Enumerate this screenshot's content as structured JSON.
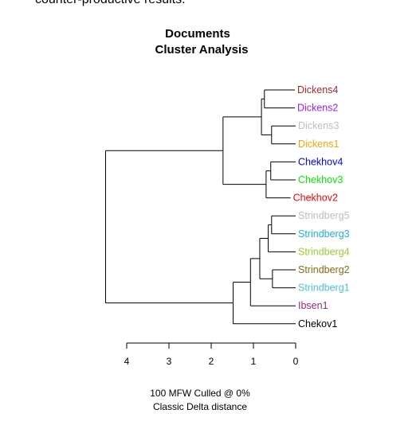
{
  "intro_text": "counter-productive results.",
  "chart_data": {
    "type": "dendrogram",
    "title_lines": [
      "Documents",
      "Cluster Analysis"
    ],
    "caption_lines": [
      "100 MFW  Culled @ 0%",
      "Classic Delta distance"
    ],
    "x_axis": {
      "reversed": true,
      "range": [
        4.0,
        0
      ],
      "ticks": [
        4,
        3,
        2,
        1,
        0
      ],
      "tick_labels": [
        "4",
        "3",
        "2",
        "1",
        "0"
      ]
    },
    "leaves": [
      {
        "label": "Dickens4",
        "color": "#a52a2a"
      },
      {
        "label": "Dickens2",
        "color": "#a020f0"
      },
      {
        "label": "Dickens3",
        "color": "#bebebe"
      },
      {
        "label": "Dickens1",
        "color": "#ffa500"
      },
      {
        "label": "Chekhov4",
        "color": "#0000ff"
      },
      {
        "label": "Chekhov3",
        "color": "#00ee00"
      },
      {
        "label": "Chekhov2",
        "color": "#ff0000"
      },
      {
        "label": "Strindberg5",
        "color": "#bebebe"
      },
      {
        "label": "Strindberg3",
        "color": "#1eb0e8"
      },
      {
        "label": "Strindberg4",
        "color": "#9acd32"
      },
      {
        "label": "Strindberg2",
        "color": "#8b6914"
      },
      {
        "label": "Strindberg1",
        "color": "#4fc1d9"
      },
      {
        "label": "Ibsen1",
        "color": "#9c2a78"
      },
      {
        "label": "Chekov1",
        "color": "#000000"
      }
    ],
    "leaf_heights": [
      0.02,
      0.02,
      0.0,
      0.0,
      0.0,
      0.0,
      0.12,
      0.0,
      0.0,
      0.0,
      0.0,
      0.0,
      0.0,
      0.0
    ],
    "merges": [
      {
        "members": [
          "Dickens4",
          "Dickens2"
        ],
        "height": 0.74
      },
      {
        "members": [
          "Dickens3",
          "Dickens1"
        ],
        "height": 0.57
      },
      {
        "members": [
          "Dickens4+Dickens2",
          "Dickens3+Dickens1"
        ],
        "height": 0.81
      },
      {
        "members": [
          "Chekhov4",
          "Chekhov3"
        ],
        "height": 0.59
      },
      {
        "members": [
          "Chekhov4+Chekhov3",
          "Chekhov2"
        ],
        "height": 0.7
      },
      {
        "members": [
          "Dickens group",
          "Chekhov group"
        ],
        "height": 1.72
      },
      {
        "members": [
          "Strindberg5",
          "Strindberg3"
        ],
        "height": 0.57
      },
      {
        "members": [
          "Strindberg5+Strindberg3",
          "Strindberg4"
        ],
        "height": 0.65
      },
      {
        "members": [
          "Strindberg2",
          "Strindberg1"
        ],
        "height": 0.55
      },
      {
        "members": [
          "Strindberg5+3+4",
          "Strindberg2+1"
        ],
        "height": 0.85
      },
      {
        "members": [
          "Strindberg group",
          "Ibsen1"
        ],
        "height": 1.07
      },
      {
        "members": [
          "Strindberg+Ibsen",
          "Chekov1"
        ],
        "height": 1.48
      },
      {
        "members": [
          "Dickens+Chekhov",
          "Strindberg+Ibsen+Chekov1"
        ],
        "height": 4.5
      }
    ]
  }
}
